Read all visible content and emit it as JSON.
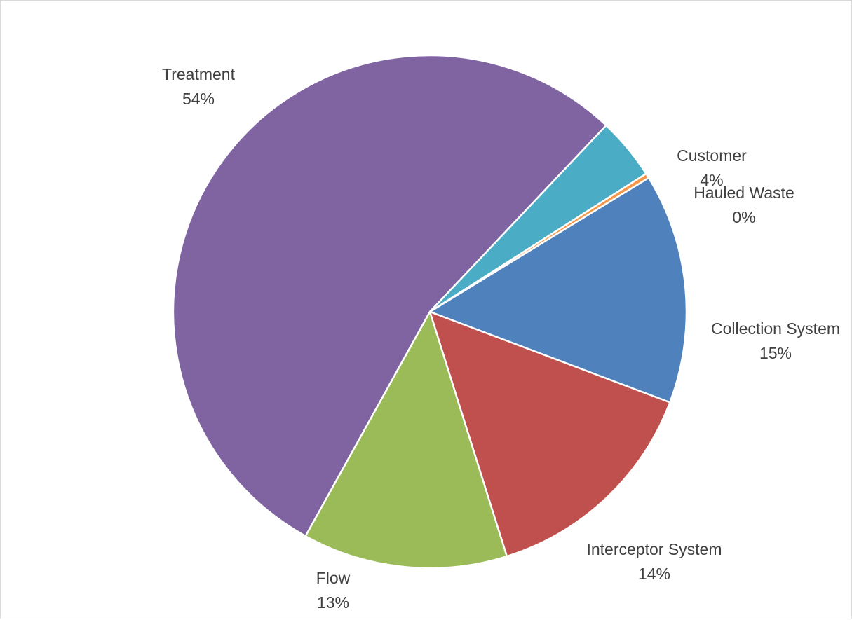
{
  "chart_data": {
    "type": "pie",
    "title": "",
    "categories": [
      "Collection System",
      "Interceptor System",
      "Flow",
      "Treatment",
      "Customer",
      "Hauled Waste"
    ],
    "values": [
      15,
      14,
      13,
      54,
      4,
      0
    ],
    "value_labels": [
      "15%",
      "14%",
      "13%",
      "54%",
      "4%",
      "0%"
    ],
    "slice_shares": [
      14.5,
      14.4,
      12.9,
      54.0,
      3.9,
      0.3
    ],
    "colors": [
      "#4f81bd",
      "#c0504d",
      "#9bbb59",
      "#8064a2",
      "#4bacc6",
      "#f79646"
    ],
    "legend": "none",
    "data_labels": "category name and percentage outside slices"
  }
}
